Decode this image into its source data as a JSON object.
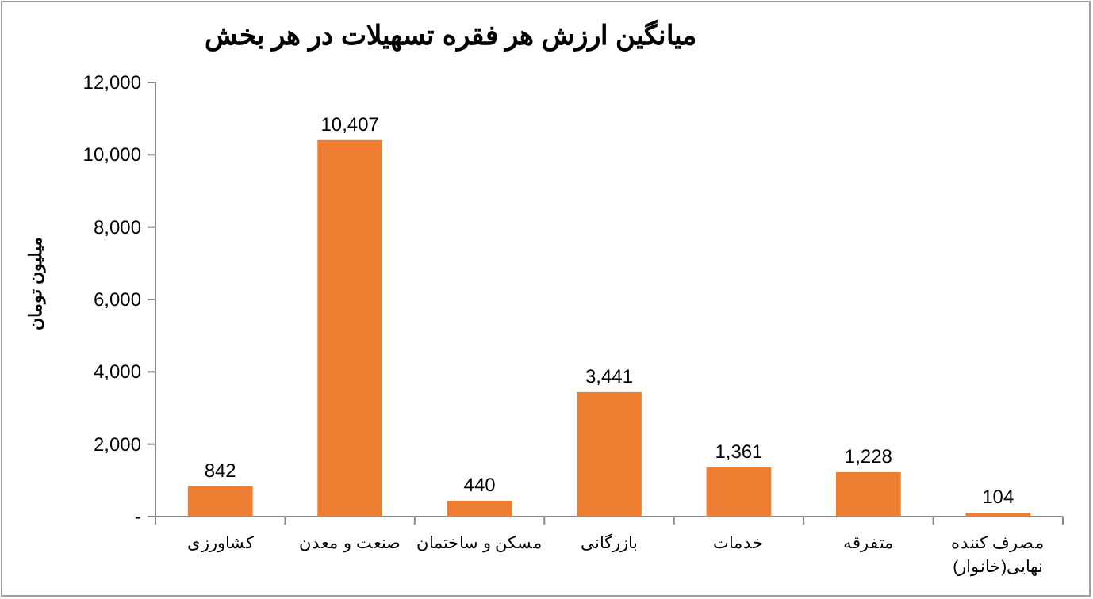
{
  "chart_data": {
    "type": "bar",
    "title": "میانگین ارزش هر فقره تسهیلات در هر بخش",
    "ylabel": "میلیون تومان",
    "categories": [
      "کشاورزی",
      "صنعت و معدن",
      "مسکن و ساختمان",
      "بازرگانی",
      "خدمات",
      "متفرقه",
      "مصرف کننده نهایی(خانوار)"
    ],
    "values": [
      842,
      10407,
      440,
      3441,
      1361,
      1228,
      104
    ],
    "value_labels": [
      "842",
      "10,407",
      "440",
      "3,441",
      "1,361",
      "1,228",
      "104"
    ],
    "color": "#ed7d31",
    "ylim": [
      0,
      12000
    ],
    "yticks": [
      {
        "value": 0,
        "label": "-"
      },
      {
        "value": 2000,
        "label": "2,000"
      },
      {
        "value": 4000,
        "label": "4,000"
      },
      {
        "value": 6000,
        "label": "6,000"
      },
      {
        "value": 8000,
        "label": "8,000"
      },
      {
        "value": 10000,
        "label": "10,000"
      },
      {
        "value": 12000,
        "label": "12,000"
      }
    ],
    "grid": false
  }
}
